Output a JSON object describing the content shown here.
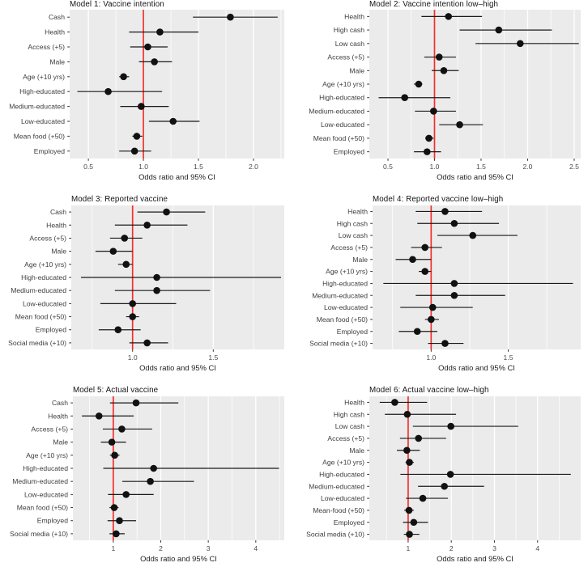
{
  "style": {
    "background": "#ffffff",
    "panel_bg": "#ebebeb",
    "grid_color": "#ffffff",
    "ref_line_color": "#f4302c",
    "point_color": "#111111",
    "ci_color": "#1a1a1a",
    "text_color": "#3d3d3d"
  },
  "chart_data": [
    {
      "type": "scatter",
      "subtype": "forest-plot",
      "title": "Model 1: Vaccine intention",
      "xlabel": "Odds ratio and 95% CI",
      "ref_line": 1.0,
      "xlim": [
        0.33,
        2.28
      ],
      "xticks": [
        0.5,
        1.0,
        1.5,
        2.0
      ],
      "xtick_labels": [
        "0.5",
        "1.0",
        "1.5",
        "2.0"
      ],
      "minor_step": 0.25,
      "grid": true,
      "categories": [
        "Cash",
        "Health",
        "Access (+5)",
        "Male",
        "Age (+10 yrs)",
        "High-educated",
        "Medium-educated",
        "Low-educated",
        "Mean food (+50)",
        "Employed"
      ],
      "or": [
        1.79,
        1.15,
        1.04,
        1.1,
        0.82,
        0.68,
        0.98,
        1.27,
        0.94,
        0.92
      ],
      "ci_low": [
        1.45,
        0.87,
        0.88,
        0.96,
        0.78,
        0.4,
        0.79,
        1.05,
        0.9,
        0.78
      ],
      "ci_high": [
        2.22,
        1.5,
        1.22,
        1.26,
        0.87,
        1.17,
        1.23,
        1.51,
        0.99,
        1.07
      ]
    },
    {
      "type": "scatter",
      "subtype": "forest-plot",
      "title": "Model 2: Vaccine intention low–high",
      "xlabel": "Odds ratio and 95% CI",
      "ref_line": 1.0,
      "xlim": [
        0.3,
        2.57
      ],
      "xticks": [
        0.5,
        1.0,
        1.5,
        2.0,
        2.5
      ],
      "xtick_labels": [
        "0.5",
        "1.0",
        "1.5",
        "2.0",
        "2.5"
      ],
      "minor_step": 0.25,
      "grid": true,
      "categories": [
        "Health",
        "High cash",
        "Low cash",
        "Access (+5)",
        "Male",
        "Age (+10 yrs)",
        "High-educated",
        "Medium-educated",
        "Low-educated",
        "Mean food (+50)",
        "Employed"
      ],
      "or": [
        1.15,
        1.69,
        1.92,
        1.05,
        1.1,
        0.83,
        0.68,
        0.99,
        1.27,
        0.94,
        0.92
      ],
      "ci_low": [
        0.86,
        1.27,
        1.44,
        0.89,
        0.97,
        0.78,
        0.4,
        0.79,
        1.05,
        0.9,
        0.78
      ],
      "ci_high": [
        1.51,
        2.26,
        2.55,
        1.23,
        1.26,
        0.87,
        1.17,
        1.23,
        1.52,
        0.99,
        1.07
      ]
    },
    {
      "type": "scatter",
      "subtype": "forest-plot",
      "title": "Model 3: Reported vaccine",
      "xlabel": "Odds ratio and 95% CI",
      "ref_line": 1.0,
      "xlim": [
        0.62,
        1.94
      ],
      "xticks": [
        1.0,
        1.5
      ],
      "xtick_labels": [
        "1.0",
        "1.5"
      ],
      "minor_step": 0.25,
      "grid": true,
      "categories": [
        "Cash",
        "Health",
        "Access (+5)",
        "Male",
        "Age (+10 yrs)",
        "High-educated",
        "Medium-educated",
        "Low-educated",
        "Mean food (+50)",
        "Employed",
        "Social media (+10)"
      ],
      "or": [
        1.21,
        1.09,
        0.95,
        0.88,
        0.96,
        1.15,
        1.15,
        1.0,
        1.0,
        0.91,
        1.09
      ],
      "ci_low": [
        1.03,
        0.89,
        0.86,
        0.77,
        0.91,
        0.68,
        0.89,
        0.8,
        0.96,
        0.79,
        0.98
      ],
      "ci_high": [
        1.45,
        1.34,
        1.06,
        1.0,
        1.0,
        1.92,
        1.48,
        1.27,
        1.04,
        1.05,
        1.22
      ]
    },
    {
      "type": "scatter",
      "subtype": "forest-plot",
      "title": "Model 4: Reported vaccine low–high",
      "xlabel": "Odds ratio and 95% CI",
      "ref_line": 1.0,
      "xlim": [
        0.62,
        1.97
      ],
      "xticks": [
        1.0,
        1.5
      ],
      "xtick_labels": [
        "1.0",
        "1.5"
      ],
      "minor_step": 0.25,
      "grid": true,
      "categories": [
        "Health",
        "High cash",
        "Low cash",
        "Access (+5)",
        "Male",
        "Age (+10 yrs)",
        "High-educated",
        "Medium-educated",
        "Low-educated",
        "Mean food (+50)",
        "Employed",
        "Social media (+10)"
      ],
      "or": [
        1.09,
        1.15,
        1.27,
        0.96,
        0.88,
        0.96,
        1.15,
        1.15,
        1.01,
        1.0,
        0.91,
        1.09
      ],
      "ci_low": [
        0.9,
        0.91,
        1.04,
        0.87,
        0.77,
        0.92,
        0.69,
        0.9,
        0.8,
        0.96,
        0.79,
        0.98
      ],
      "ci_high": [
        1.33,
        1.44,
        1.56,
        1.07,
        1.0,
        1.0,
        1.92,
        1.48,
        1.27,
        1.05,
        1.04,
        1.21
      ]
    },
    {
      "type": "scatter",
      "subtype": "forest-plot",
      "title": "Model 5: Actual vaccine",
      "xlabel": "Odds ratio and 95% CI",
      "ref_line": 1.0,
      "xlim": [
        0.15,
        4.6
      ],
      "xticks": [
        1,
        2,
        3,
        4
      ],
      "xtick_labels": [
        "1",
        "2",
        "3",
        "4"
      ],
      "minor_step": 0.5,
      "grid": true,
      "categories": [
        "Cash",
        "Health",
        "Access (+5)",
        "Male",
        "Age (+10 yrs)",
        "High-educated",
        "Medium-educated",
        "Low-educated",
        "Mean food (+50)",
        "Employed",
        "Social media (+10)"
      ],
      "or": [
        1.48,
        0.7,
        1.18,
        0.97,
        1.03,
        1.85,
        1.78,
        1.27,
        1.02,
        1.13,
        1.06
      ],
      "ci_low": [
        0.93,
        0.34,
        0.78,
        0.74,
        0.93,
        0.79,
        1.19,
        0.89,
        0.92,
        0.88,
        0.92
      ],
      "ci_high": [
        2.37,
        1.43,
        1.82,
        1.27,
        1.13,
        4.49,
        2.7,
        1.85,
        1.11,
        1.48,
        1.24
      ]
    },
    {
      "type": "scatter",
      "subtype": "forest-plot",
      "title": "Model 6: Actual vaccine low–high",
      "xlabel": "Odds ratio and 95% CI",
      "ref_line": 1.0,
      "xlim": [
        0.1,
        5.0
      ],
      "xticks": [
        1,
        2,
        3,
        4
      ],
      "xtick_labels": [
        "1",
        "2",
        "3",
        "4"
      ],
      "minor_step": 0.5,
      "grid": true,
      "categories": [
        "Health",
        "High cash",
        "Low cash",
        "Access (+5)",
        "Male",
        "Age (+10 yrs)",
        "High-educated",
        "Medium-educated",
        "Low-educated",
        "Mean-food (+50)",
        "Employed",
        "Social media (+10)"
      ],
      "or": [
        0.69,
        0.98,
        1.99,
        1.24,
        0.97,
        1.03,
        1.98,
        1.84,
        1.34,
        1.02,
        1.13,
        1.03
      ],
      "ci_low": [
        0.34,
        0.46,
        1.11,
        0.81,
        0.74,
        0.94,
        0.82,
        1.23,
        0.95,
        0.91,
        0.88,
        0.9
      ],
      "ci_high": [
        1.44,
        2.11,
        3.55,
        1.88,
        1.27,
        1.13,
        4.77,
        2.76,
        1.92,
        1.13,
        1.46,
        1.26
      ]
    }
  ]
}
